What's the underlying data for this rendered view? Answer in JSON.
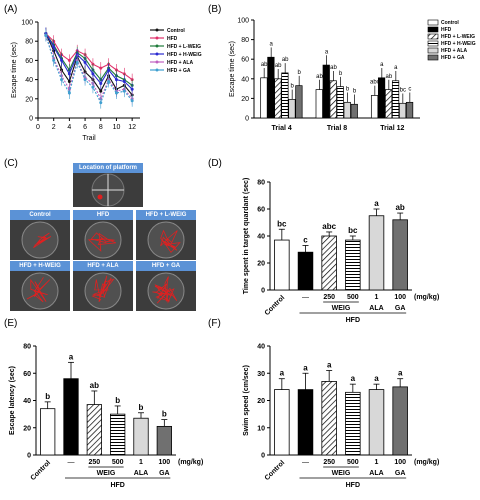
{
  "panel_letters": [
    "(A)",
    "(B)",
    "(C)",
    "(D)",
    "(E)",
    "(F)"
  ],
  "groups": [
    "Control",
    "HFD",
    "HFD + L-WEIG",
    "HFD + H-WEIG",
    "HFD + ALA",
    "HFD + GA"
  ],
  "series_colors": [
    "#111111",
    "#e0306a",
    "#1e7a3a",
    "#2a2ad0",
    "#c060c0",
    "#40a0d0"
  ],
  "panel_c": {
    "platform_title": "Location of platform",
    "tiles": [
      "Control",
      "HFD",
      "HFD + L-WEIG",
      "HFD + H-WEIG",
      "HFD + ALA",
      "HFD + GA"
    ]
  },
  "treatment_axis": {
    "control": "Control",
    "hfd_dash": "—",
    "doses": [
      "250",
      "500",
      "1",
      "100"
    ],
    "unit": "(mg/kg)",
    "agents": [
      "WEIG",
      "ALA",
      "GA"
    ],
    "hfd_label": "HFD"
  },
  "chart_data": [
    {
      "panel": "A",
      "type": "line",
      "xlabel": "Trail",
      "ylabel": "Escape time (sec)",
      "xlim": [
        0,
        13
      ],
      "ylim": [
        0,
        100
      ],
      "xticks": [
        0,
        2,
        4,
        6,
        8,
        10,
        12
      ],
      "yticks": [
        0,
        20,
        40,
        60,
        80,
        100
      ],
      "x": [
        1,
        2,
        3,
        4,
        5,
        6,
        7,
        8,
        9,
        10,
        11,
        12
      ],
      "series": [
        {
          "name": "Control",
          "values": [
            88,
            70,
            50,
            38,
            64,
            48,
            40,
            28,
            44,
            30,
            34,
            24
          ]
        },
        {
          "name": "HFD",
          "values": [
            88,
            80,
            66,
            60,
            70,
            66,
            56,
            52,
            56,
            50,
            46,
            40
          ]
        },
        {
          "name": "HFD + L-WEIG",
          "values": [
            88,
            76,
            62,
            50,
            68,
            62,
            50,
            40,
            52,
            44,
            40,
            34
          ]
        },
        {
          "name": "HFD + H-WEIG",
          "values": [
            88,
            74,
            60,
            46,
            66,
            58,
            46,
            36,
            50,
            40,
            38,
            30
          ]
        },
        {
          "name": "HFD + ALA",
          "values": [
            86,
            62,
            44,
            30,
            60,
            42,
            36,
            20,
            40,
            28,
            30,
            20
          ]
        },
        {
          "name": "HFD + GA",
          "values": [
            86,
            60,
            40,
            26,
            58,
            40,
            32,
            16,
            38,
            26,
            28,
            18
          ]
        }
      ]
    },
    {
      "panel": "B",
      "type": "bar",
      "ylabel": "Escape time (sec)",
      "ylim": [
        0,
        100
      ],
      "yticks": [
        0,
        20,
        40,
        60,
        80,
        100
      ],
      "categories": [
        "Trial 4",
        "Trial 8",
        "Trial 12"
      ],
      "series": [
        {
          "name": "Control",
          "values": [
            41,
            29,
            23
          ],
          "letters": [
            "ab",
            "ab",
            "abc"
          ]
        },
        {
          "name": "HFD",
          "values": [
            62,
            54,
            41
          ],
          "letters": [
            "a",
            "a",
            "a"
          ]
        },
        {
          "name": "HFD + L-WEIG",
          "values": [
            40,
            38,
            29
          ],
          "letters": [
            "ab",
            "ab",
            "ab"
          ]
        },
        {
          "name": "HFD + H-WEIG",
          "values": [
            46,
            32,
            38
          ],
          "letters": [
            "ab",
            "b",
            "a"
          ]
        },
        {
          "name": "HFD + ALA",
          "values": [
            19,
            16,
            15
          ],
          "letters": [
            "b",
            "b",
            "bc"
          ]
        },
        {
          "name": "HFD + GA",
          "values": [
            33,
            14,
            16
          ],
          "letters": [
            "b",
            "b",
            "c"
          ]
        }
      ]
    },
    {
      "panel": "D",
      "type": "bar",
      "ylabel": "Time spent in target quardant (sec)",
      "ylim": [
        0,
        80
      ],
      "yticks": [
        0,
        20,
        40,
        60,
        80
      ],
      "values": [
        37,
        28,
        40,
        37,
        55,
        52
      ],
      "errors": [
        8,
        5,
        3,
        3,
        5,
        5
      ],
      "letters": [
        "bc",
        "c",
        "abc",
        "bc",
        "a",
        "ab"
      ]
    },
    {
      "panel": "E",
      "type": "bar",
      "ylabel": "Escape latency (sec)",
      "ylim": [
        0,
        80
      ],
      "yticks": [
        0,
        20,
        40,
        60,
        80
      ],
      "values": [
        34,
        56,
        37,
        30,
        27,
        21
      ],
      "errors": [
        5,
        12,
        10,
        6,
        4,
        5
      ],
      "letters": [
        "b",
        "a",
        "ab",
        "b",
        "b",
        "b"
      ]
    },
    {
      "panel": "F",
      "type": "bar",
      "ylabel": "Swim speed (cm/sec)",
      "ylim": [
        0,
        40
      ],
      "yticks": [
        0,
        10,
        20,
        30,
        40
      ],
      "values": [
        24,
        24,
        27,
        23,
        24,
        25
      ],
      "errors": [
        4,
        6,
        4,
        3,
        2,
        3
      ],
      "letters": [
        "a",
        "a",
        "a",
        "a",
        "a",
        "a"
      ]
    }
  ]
}
